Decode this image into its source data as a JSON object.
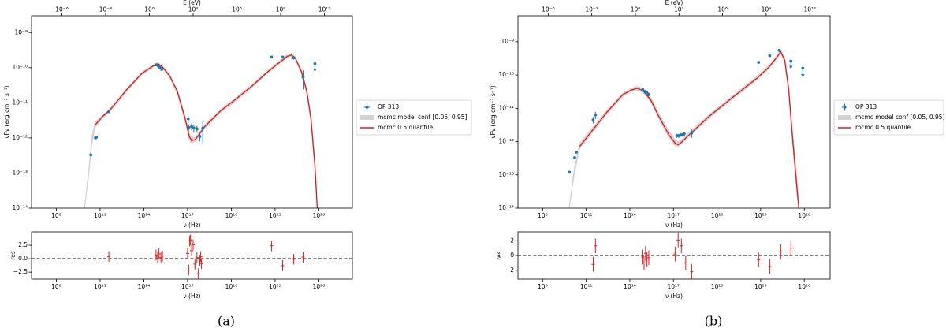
{
  "captions": [
    "(a)",
    "(b)"
  ],
  "chart_data": [
    {
      "type": "sed",
      "xscale": "log",
      "yscale": "log",
      "legend": "outside right",
      "xlabel": "ν (Hz)",
      "ylabel": "νFν (erg cm⁻² s⁻¹)",
      "x2label": "E (eV)",
      "xlim": [
        2000000.0,
        2e+28
      ],
      "x2lim": [
        8.3e-09,
        83000000000000.0
      ],
      "ylim": [
        1e-14,
        3e-09
      ],
      "xticks": [
        {
          "value": 100000000.0,
          "label": "10⁸"
        },
        {
          "value": 100000000000.0,
          "label": "10¹¹"
        },
        {
          "value": 100000000000000.0,
          "label": "10¹⁴"
        },
        {
          "value": 1e+17,
          "label": "10¹⁷"
        },
        {
          "value": 1e+20,
          "label": "10²⁰"
        },
        {
          "value": 1e+23,
          "label": "10²³"
        },
        {
          "value": 1e+26,
          "label": "10²⁶"
        }
      ],
      "x2ticks": [
        {
          "value": 1e-06,
          "label": "10⁻⁶"
        },
        {
          "value": 0.001,
          "label": "10⁻³"
        },
        {
          "value": 1,
          "label": "10⁰"
        },
        {
          "value": 1000.0,
          "label": "10³"
        },
        {
          "value": 1000000.0,
          "label": "10⁶"
        },
        {
          "value": 1000000000.0,
          "label": "10⁹"
        },
        {
          "value": 1000000000000.0,
          "label": "10¹²"
        }
      ],
      "yticks": [
        {
          "value": 1e-14,
          "label": "10⁻¹⁴"
        },
        {
          "value": 1e-13,
          "label": "10⁻¹³"
        },
        {
          "value": 1e-12,
          "label": "10⁻¹²"
        },
        {
          "value": 1e-11,
          "label": "10⁻¹¹"
        },
        {
          "value": 1e-10,
          "label": "10⁻¹⁰"
        },
        {
          "value": 1e-09,
          "label": "10⁻⁹"
        }
      ],
      "series": [
        {
          "name": "OP 313",
          "color": "#1f77b4",
          "x": [
            23000000000.0,
            48000000000.0,
            56000000000.0,
            400000000000.0,
            700000000000000.0,
            1000000000000000.0,
            1300000000000000.0,
            1700000000000000.0,
            1.1e+17,
            1.2e+17,
            1.9e+17,
            2.7e+17,
            4.4e+17,
            7e+17,
            1.1e+18,
            5.7e+22,
            3.3e+23,
            1.9e+24,
            8.3e+24,
            5.4e+25
          ],
          "values": [
            3.3e-13,
            1e-12,
            1.05e-12,
            5.6e-12,
            1.2e-10,
            1.1e-10,
            1e-10,
            8.9e-11,
            3.5e-12,
            2e-12,
            2.1e-12,
            1.9e-12,
            1.8e-12,
            1.1e-12,
            1.9e-12,
            2e-10,
            2e-10,
            1.9e-10,
            5.4e-11,
            1.3e-10
          ],
          "yerr": [
            3e-14,
            1e-13,
            1e-13,
            4e-13,
            8e-12,
            8e-12,
            8e-12,
            8e-12,
            8e-13,
            4e-13,
            5e-13,
            5e-13,
            4e-13,
            3e-13,
            1.2e-12,
            1.5e-11,
            1.5e-11,
            2e-11,
            3e-11,
            5e-11
          ],
          "uplims": [
            false,
            false,
            false,
            false,
            false,
            false,
            false,
            false,
            false,
            false,
            false,
            false,
            false,
            false,
            false,
            false,
            false,
            false,
            false,
            true
          ]
        },
        {
          "name": "mcmc model conf [0.05, 0.95]",
          "color": "#d3d3d3",
          "x": [
            8700000000.0,
            16000000000.0,
            27000000000.0,
            44000000000.0,
            150000000000.0,
            520000000000.0,
            6300000000000.0,
            74000000000000.0,
            480000000000000.0,
            890000000000000.0,
            1700000000000000.0,
            5800000000000000.0,
            2e+16,
            6.9e+16,
            1.3e+17,
            1.9e+17,
            3.5e+17,
            1.5e+18,
            1.8e+19,
            2.2e+20,
            2.6e+21,
            3.1e+22,
            2e+23,
            6.9e+23,
            1.3e+24,
            2.4e+24,
            6.5e+24,
            1.5e+25,
            2.9e+25,
            5.4e+25,
            7.8e+25
          ],
          "lower": [
            1e-14,
            7e-14,
            6e-13,
            1.9e-12,
            3.6e-12,
            5.7e-12,
            2e-11,
            6.2e-11,
            1.05e-10,
            1.2e-10,
            1e-10,
            5.3e-11,
            1.8e-11,
            2.8e-12,
            8.5e-13,
            7e-13,
            8e-13,
            1.8e-12,
            5.2e-12,
            1.15e-11,
            2.7e-11,
            6.9e-11,
            1.3e-10,
            1.9e-10,
            2.05e-10,
            1.7e-10,
            6.5e-11,
            1.7e-11,
            2.6e-12,
            1e-13,
            1e-14
          ],
          "upper": [
            1.2e-14,
            1.1e-13,
            1.1e-12,
            2.8e-12,
            4.6e-12,
            7.2e-12,
            2.5e-11,
            7.5e-11,
            1.25e-10,
            1.4e-10,
            1.2e-10,
            6.6e-11,
            2.4e-11,
            4.2e-12,
            1.4e-12,
            1.05e-12,
            1.05e-12,
            2.4e-12,
            6.5e-12,
            1.45e-11,
            3.3e-11,
            8.4e-11,
            1.6e-10,
            2.4e-10,
            2.6e-10,
            2.1e-10,
            8.8e-11,
            2.6e-11,
            4.5e-12,
            2.5e-13,
            1.6e-14
          ]
        },
        {
          "name": "mcmc 0.5 quantile",
          "color": "#e31a1c",
          "x": [
            44000000000.0,
            150000000000.0,
            520000000000.0,
            6300000000000.0,
            74000000000000.0,
            480000000000000.0,
            890000000000000.0,
            1700000000000000.0,
            5800000000000000.0,
            2e+16,
            6.9e+16,
            1.3e+17,
            1.9e+17,
            3.5e+17,
            1.5e+18,
            1.8e+19,
            2.2e+20,
            2.6e+21,
            3.1e+22,
            2e+23,
            6.9e+23,
            1.3e+24,
            2.4e+24,
            6.5e+24,
            1.5e+25,
            2.9e+25,
            5.4e+25,
            7.8e+25
          ],
          "values": [
            2.3e-12,
            4.1e-12,
            6.5e-12,
            2.3e-11,
            6.9e-11,
            1.15e-10,
            1.3e-10,
            1.1e-10,
            5.9e-11,
            2.1e-11,
            3.5e-12,
            1.1e-12,
            8.3e-13,
            9.1e-13,
            2.1e-12,
            5.9e-12,
            1.3e-11,
            3e-11,
            7.6e-11,
            1.4e-10,
            2.1e-10,
            2.3e-10,
            1.9e-10,
            7.6e-11,
            2.1e-11,
            3.5e-12,
            1.6e-13,
            1e-14
          ]
        }
      ]
    },
    {
      "type": "residual",
      "xscale": "log",
      "xlabel": "ν (Hz)",
      "ylabel": "res",
      "color": "#e31a1c",
      "xlim": [
        2000000.0,
        2e+28
      ],
      "ylim": [
        -3.8,
        5
      ],
      "reference_line": 0,
      "xticks": [
        {
          "value": 100000000.0,
          "label": "10⁸"
        },
        {
          "value": 100000000000.0,
          "label": "10¹¹"
        },
        {
          "value": 100000000000000.0,
          "label": "10¹⁴"
        },
        {
          "value": 1e+17,
          "label": "10¹⁷"
        },
        {
          "value": 1e+20,
          "label": "10²⁰"
        },
        {
          "value": 1e+23,
          "label": "10²³"
        },
        {
          "value": 1e+26,
          "label": "10²⁶"
        }
      ],
      "yticks": [
        {
          "value": -2.5,
          "label": "−2.5"
        },
        {
          "value": 0,
          "label": "0.0"
        },
        2.5
      ],
      "x": [
        400000000000.0,
        690000000000000.0,
        890000000000000.0,
        1100000000000000.0,
        1500000000000000.0,
        1900000000000000.0,
        1e+17,
        1.2e+17,
        1.4e+17,
        1.6e+17,
        1.9e+17,
        2.4e+17,
        3.2e+17,
        4.4e+17,
        5.5e+17,
        7e+17,
        8e+17,
        9e+17,
        5.7e+22,
        3.3e+23,
        1.9e+24,
        8.3e+24
      ],
      "values": [
        0.4,
        0.7,
        0.3,
        0.9,
        0.2,
        0.5,
        1.0,
        -2.1,
        3.3,
        3.5,
        1.5,
        2.6,
        -1.0,
        0.2,
        -2.8,
        -0.3,
        0.4,
        -0.9,
        2.4,
        -1.3,
        -0.1,
        0.3
      ],
      "yerr": [
        1,
        1,
        1,
        1,
        1,
        1,
        1,
        1,
        1,
        1,
        1,
        1,
        1,
        1,
        1,
        1,
        1,
        1,
        1,
        1,
        1,
        1
      ]
    },
    {
      "type": "sed",
      "xscale": "log",
      "yscale": "log",
      "legend": "outside right",
      "xlabel": "ν (Hz)",
      "ylabel": "νFν (erg cm⁻² s⁻¹)",
      "x2label": "E (eV)",
      "xlim": [
        2000000.0,
        6e+27
      ],
      "x2lim": [
        8.3e-09,
        25000000000000.0
      ],
      "ylim": [
        1e-14,
        6e-09
      ],
      "xticks": [
        {
          "value": 100000000.0,
          "label": "10⁸"
        },
        {
          "value": 100000000000.0,
          "label": "10¹¹"
        },
        {
          "value": 100000000000000.0,
          "label": "10¹⁴"
        },
        {
          "value": 1e+17,
          "label": "10¹⁷"
        },
        {
          "value": 1e+20,
          "label": "10²⁰"
        },
        {
          "value": 1e+23,
          "label": "10²³"
        },
        {
          "value": 1e+26,
          "label": "10²⁶"
        }
      ],
      "x2ticks": [
        {
          "value": 1e-06,
          "label": "10⁻⁶"
        },
        {
          "value": 0.001,
          "label": "10⁻³"
        },
        {
          "value": 1,
          "label": "10⁰"
        },
        {
          "value": 1000.0,
          "label": "10³"
        },
        {
          "value": 1000000.0,
          "label": "10⁶"
        },
        {
          "value": 1000000000.0,
          "label": "10⁹"
        },
        {
          "value": 1000000000000.0,
          "label": "10¹²"
        }
      ],
      "yticks": [
        {
          "value": 1e-14,
          "label": "10⁻¹⁴"
        },
        {
          "value": 1e-13,
          "label": "10⁻¹³"
        },
        {
          "value": 1e-12,
          "label": "10⁻¹²"
        },
        {
          "value": 1e-11,
          "label": "10⁻¹¹"
        },
        {
          "value": 1e-10,
          "label": "10⁻¹⁰"
        },
        {
          "value": 1e-09,
          "label": "10⁻⁹"
        }
      ],
      "series": [
        {
          "name": "OP 313",
          "color": "#1f77b4",
          "x": [
            6900000000.0,
            16000000000.0,
            21000000000.0,
            300000000000.0,
            430000000000.0,
            780000000000000.0,
            1100000000000000.0,
            1500000000000000.0,
            2000000000000000.0,
            1.7e+17,
            2.3e+17,
            3.1e+17,
            4.1e+17,
            5.5e+17,
            1.8e+18,
            7.2e+22,
            4.2e+23,
            1.9e+24,
            1.2e+25,
            7.9e+25
          ],
          "values": [
            1.2e-13,
            3.3e-13,
            4.8e-13,
            4.5e-12,
            6.3e-12,
            3.6e-11,
            3.2e-11,
            2.9e-11,
            2.6e-11,
            1.5e-12,
            1.5e-12,
            1.6e-12,
            1.6e-12,
            1.7e-12,
            1.8e-12,
            2.4e-10,
            3.8e-10,
            5.5e-10,
            2.6e-10,
            1.6e-10
          ],
          "yerr": [
            1e-14,
            3e-14,
            4e-14,
            1e-12,
            1.5e-12,
            3e-12,
            3e-12,
            3e-12,
            3e-12,
            2e-13,
            2e-13,
            2e-13,
            2e-13,
            2e-13,
            5e-13,
            2e-11,
            3e-11,
            6e-11,
            1e-10,
            7e-11
          ],
          "uplims": [
            false,
            false,
            false,
            false,
            false,
            false,
            false,
            false,
            false,
            false,
            false,
            false,
            false,
            false,
            false,
            false,
            false,
            false,
            true,
            true
          ]
        },
        {
          "name": "mcmc model conf [0.05, 0.95]",
          "color": "#d3d3d3",
          "x": [
            6900000000.0,
            15000000000.0,
            35000000000.0,
            230000000000.0,
            2800000000000.0,
            34000000000000.0,
            120000000000000.0,
            320000000000000.0,
            780000000000000.0,
            2700000000000000.0,
            9300000000000000.0,
            4.8e+16,
            1.3e+17,
            2.1e+17,
            3.5e+17,
            1.4e+18,
            3.2e+19,
            1.3e+21,
            5.6e+22,
            3.6e+23,
            1.3e+24,
            2.4e+24,
            4.5e+24,
            8.3e+24,
            1.5e+25,
            2.9e+25,
            4.2e+25
          ],
          "lower": [
            1e-14,
            1e-13,
            6e-13,
            1.7e-12,
            6.8e-12,
            2.3e-11,
            3.1e-11,
            3.5e-11,
            3e-11,
            1.55e-11,
            5e-12,
            1.3e-12,
            7.5e-13,
            7e-13,
            8.5e-13,
            1.5e-12,
            5.3e-12,
            1.95e-11,
            7.1e-11,
            1.5e-10,
            3e-10,
            4.4e-10,
            2.3e-10,
            3e-11,
            1e-12,
            3e-14,
            1e-14
          ],
          "upper": [
            1.3e-14,
            1.6e-13,
            9e-13,
            2.4e-12,
            9.2e-12,
            2.95e-11,
            4e-11,
            4.6e-11,
            4e-11,
            2.2e-11,
            7.5e-12,
            2.1e-12,
            1.15e-12,
            1e-12,
            1.15e-12,
            2e-12,
            6.9e-12,
            2.5e-11,
            9.2e-11,
            1.95e-10,
            3.9e-10,
            5.7e-10,
            3.4e-10,
            5.5e-11,
            2.5e-12,
            1.2e-13,
            1.5e-14
          ]
        },
        {
          "name": "mcmc 0.5 quantile",
          "color": "#e31a1c",
          "x": [
            35000000000.0,
            230000000000.0,
            2800000000000.0,
            34000000000000.0,
            120000000000000.0,
            320000000000000.0,
            780000000000000.0,
            2700000000000000.0,
            9300000000000000.0,
            4.8e+16,
            1.3e+17,
            2.1e+17,
            3.5e+17,
            1.4e+18,
            3.2e+19,
            1.3e+21,
            5.6e+22,
            3.6e+23,
            1.3e+24,
            2.4e+24,
            4.5e+24,
            8.3e+24,
            1.5e+25,
            2.9e+25,
            4.2e+25
          ],
          "values": [
            7.1e-13,
            2e-12,
            7.9e-12,
            2.6e-11,
            3.5e-11,
            4e-11,
            3.4e-11,
            1.8e-11,
            6e-12,
            1.6e-12,
            9e-13,
            8e-13,
            9.5e-13,
            1.7e-12,
            6e-12,
            2.2e-11,
            8e-11,
            1.7e-10,
            3.4e-10,
            5e-10,
            2.8e-10,
            4e-11,
            1.6e-12,
            6e-14,
            1e-14
          ]
        }
      ]
    },
    {
      "type": "residual",
      "xscale": "log",
      "xlabel": "ν (Hz)",
      "ylabel": "res",
      "color": "#e31a1c",
      "xlim": [
        2000000.0,
        6e+27
      ],
      "ylim": [
        -3.2,
        3.2
      ],
      "reference_line": 0,
      "xticks": [
        {
          "value": 100000000.0,
          "label": "10⁸"
        },
        {
          "value": 100000000000.0,
          "label": "10¹¹"
        },
        {
          "value": 100000000000000.0,
          "label": "10¹⁴"
        },
        {
          "value": 1e+17,
          "label": "10¹⁷"
        },
        {
          "value": 1e+20,
          "label": "10²⁰"
        },
        {
          "value": 1e+23,
          "label": "10²³"
        },
        {
          "value": 1e+26,
          "label": "10²⁶"
        }
      ],
      "yticks": [
        {
          "value": -2,
          "label": "−2"
        },
        0,
        2
      ],
      "x": [
        300000000000.0,
        430000000000.0,
        780000000000000.0,
        950000000000000.0,
        1200000000000000.0,
        1500000000000000.0,
        2000000000000000.0,
        1.3e+17,
        2.1e+17,
        3.5e+17,
        7e+17,
        1.8e+18,
        7.2e+22,
        4.2e+23,
        2.4e+24,
        1.2e+25
      ],
      "values": [
        -1.2,
        1.3,
        -0.2,
        -1.0,
        0.3,
        -0.5,
        -0.3,
        0.2,
        2.1,
        1.3,
        -1.0,
        -2.2,
        -0.6,
        -1.5,
        0.5,
        1.0
      ],
      "yerr": [
        1,
        1,
        1,
        1,
        1,
        1,
        1,
        1,
        1,
        1,
        1,
        1,
        1,
        1,
        1,
        1
      ]
    }
  ]
}
